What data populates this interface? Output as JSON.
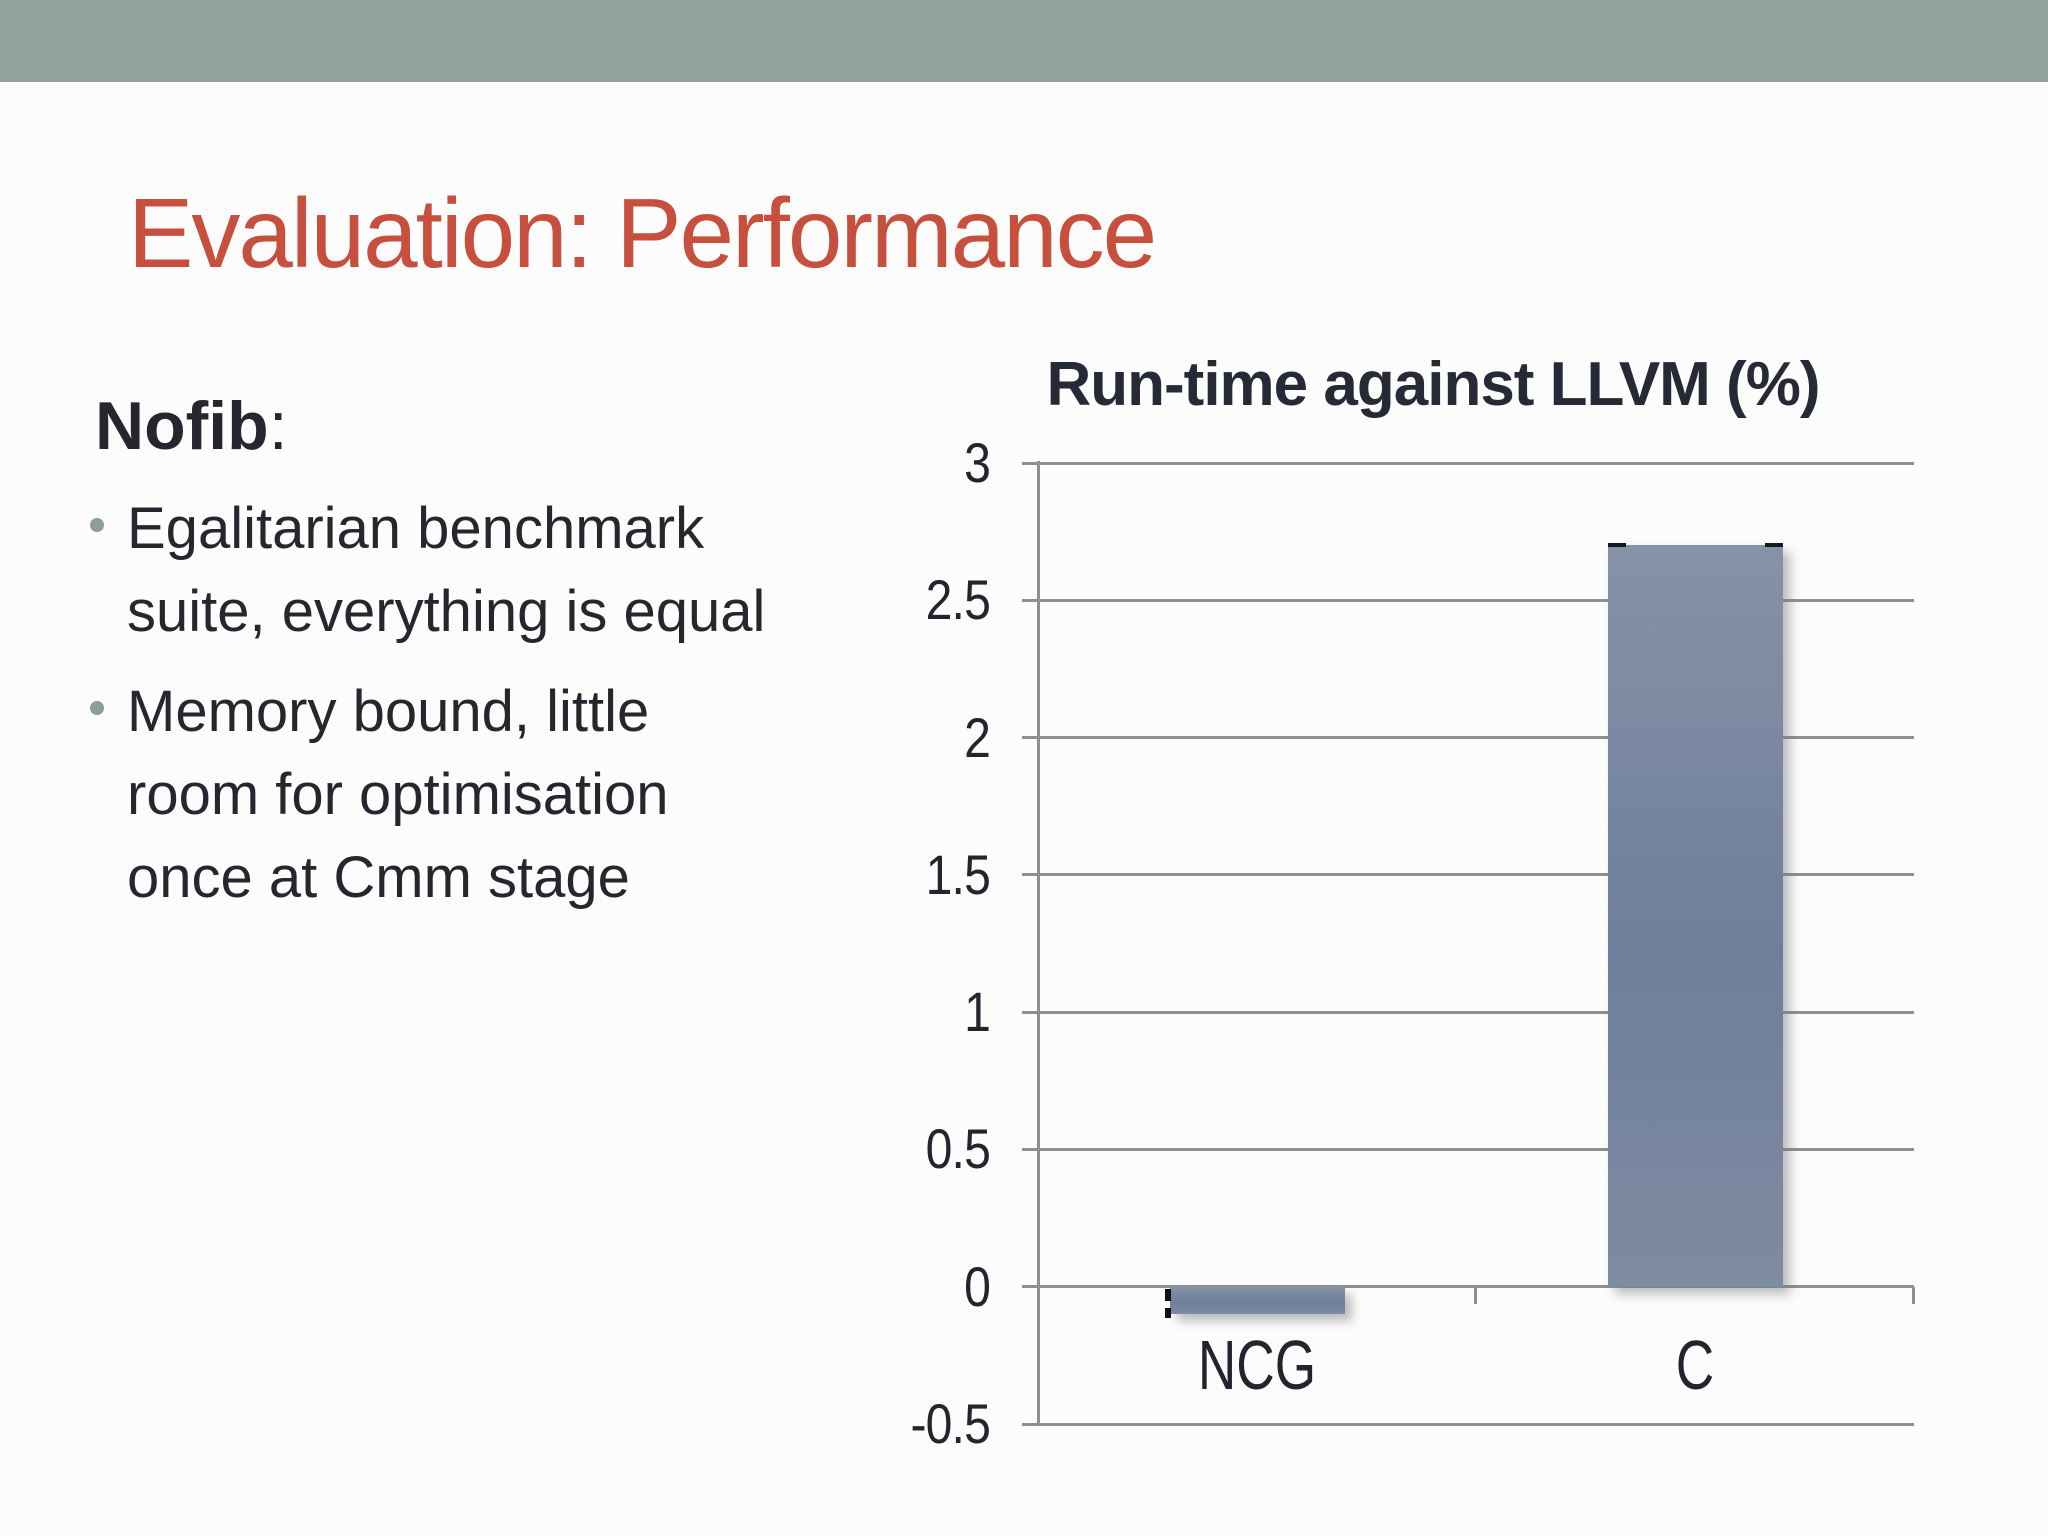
{
  "slide": {
    "header_bar_color": "#91a19b",
    "background_color": "#fcfcfd",
    "title": "Evaluation: Performance",
    "title_color": "#c6503d"
  },
  "content": {
    "heading": "Nofib",
    "heading_colon": ":",
    "bullet_dot_color": "#8d9e95",
    "text_color": "#26272e",
    "bullets": [
      {
        "text": "Egalitarian benchmark\nsuite, everything is equal"
      },
      {
        "text": "Memory bound, little\nroom for optimisation\nonce at Cmm stage"
      }
    ]
  },
  "chart_data": {
    "type": "bar",
    "title": "Run-time against LLVM (%)",
    "categories": [
      "NCG",
      "C"
    ],
    "values": [
      -0.1,
      2.7
    ],
    "xlabel": "",
    "ylabel": "",
    "ylim": [
      -0.5,
      3
    ],
    "ytick_step": 0.5,
    "ytick_labels": [
      "3",
      "2.5",
      "2",
      "1.5",
      "1",
      "0.5",
      "0",
      "-0.5"
    ],
    "grid": true,
    "legend": false,
    "gridline_color": "#8f8f8f",
    "bar_color_top": "#8593a8",
    "bar_color_mid": "#6f7e9a",
    "bar_color_bottom": "#7e8ca2",
    "error_marks": [
      {
        "category": "NCG",
        "style": "dashed-left-edge"
      },
      {
        "category": "C",
        "style": "caps-top-corners"
      }
    ]
  }
}
